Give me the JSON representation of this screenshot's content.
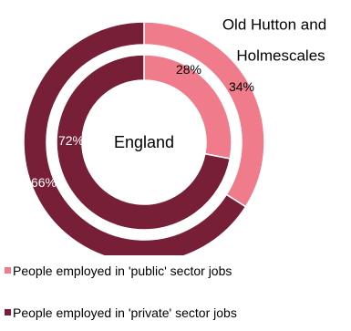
{
  "chart_data": {
    "type": "pie",
    "subtype": "nested-donut",
    "series": [
      {
        "name": "Old Hutton and Holmescales",
        "ring": "outer",
        "values": [
          34,
          66
        ],
        "labels": [
          "34%",
          "66%"
        ]
      },
      {
        "name": "England",
        "ring": "inner",
        "values": [
          28,
          72
        ],
        "labels": [
          "28%",
          "72%"
        ]
      }
    ],
    "categories": [
      "People employed in 'public' sector jobs",
      "People employed in 'private' sector jobs"
    ],
    "colors": [
      "#f07b8a",
      "#771f37"
    ],
    "legend_position": "bottom",
    "outer_label_lines": [
      "Old Hutton and",
      "Holmescales"
    ],
    "center_label": "England"
  }
}
